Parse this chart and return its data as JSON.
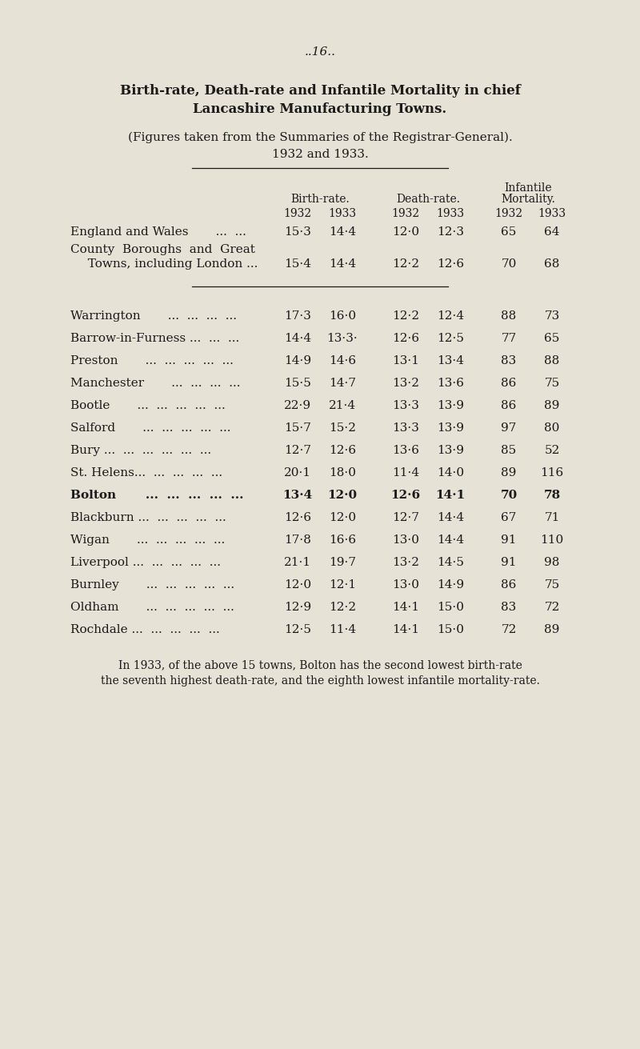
{
  "page_number": "..16..",
  "title_line1": "Birth-rate, Death-rate and Infantile Mortality in chief",
  "title_line2": "Lancashire Manufacturing Towns.",
  "subtitle": "(Figures taken from the Summaries of the Registrar-General).",
  "subtitle2": "1932 and 1933.",
  "reference_rows": [
    {
      "name1": "England and Wales       ...  ...",
      "name2": null,
      "bold": false,
      "br1932": "15·3",
      "br1933": "14·4",
      "dr1932": "12·0",
      "dr1933": "12·3",
      "im1932": "65",
      "im1933": "64"
    },
    {
      "name1": "County  Boroughs  and  Great",
      "name2": "  Towns, including London ...",
      "bold": false,
      "br1932": "15·4",
      "br1933": "14·4",
      "dr1932": "12·2",
      "dr1933": "12·6",
      "im1932": "70",
      "im1933": "68"
    }
  ],
  "town_rows": [
    {
      "name": "Warrington       ...  ...  ...  ...",
      "bold": false,
      "br1932": "17·3",
      "br1933": "16·0",
      "dr1932": "12·2",
      "dr1933": "12·4",
      "im1932": "88",
      "im1933": "73"
    },
    {
      "name": "Barrow-in-Furness ...  ...  ...",
      "bold": false,
      "br1932": "14·4",
      "br1933": "13·3·",
      "dr1932": "12·6",
      "dr1933": "12·5",
      "im1932": "77",
      "im1933": "65"
    },
    {
      "name": "Preston       ...  ...  ...  ...  ...",
      "bold": false,
      "br1932": "14·9",
      "br1933": "14·6",
      "dr1932": "13·1",
      "dr1933": "13·4",
      "im1932": "83",
      "im1933": "88"
    },
    {
      "name": "Manchester       ...  ...  ...  ...",
      "bold": false,
      "br1932": "15·5",
      "br1933": "14·7",
      "dr1932": "13·2",
      "dr1933": "13·6",
      "im1932": "86",
      "im1933": "75"
    },
    {
      "name": "Bootle       ...  ...  ...  ...  ...",
      "bold": false,
      "br1932": "22·9",
      "br1933": "21·4",
      "dr1932": "13·3",
      "dr1933": "13·9",
      "im1932": "86",
      "im1933": "89"
    },
    {
      "name": "Salford       ...  ...  ...  ...  ...",
      "bold": false,
      "br1932": "15·7",
      "br1933": "15·2",
      "dr1932": "13·3",
      "dr1933": "13·9",
      "im1932": "97",
      "im1933": "80"
    },
    {
      "name": "Bury ...  ...  ...  ...  ...  ...",
      "bold": false,
      "br1932": "12·7",
      "br1933": "12·6",
      "dr1932": "13·6",
      "dr1933": "13·9",
      "im1932": "85",
      "im1933": "52"
    },
    {
      "name": "St. Helens...  ...  ...  ...  ...",
      "bold": false,
      "br1932": "20·1",
      "br1933": "18·0",
      "dr1932": "11·4",
      "dr1933": "14·0",
      "im1932": "89",
      "im1933": "116"
    },
    {
      "name": "Bolton       ...  ...  ...  ...  ...",
      "bold": true,
      "br1932": "13·4",
      "br1933": "12·0",
      "dr1932": "12·6",
      "dr1933": "14·1",
      "im1932": "70",
      "im1933": "78"
    },
    {
      "name": "Blackburn ...  ...  ...  ...  ...",
      "bold": false,
      "br1932": "12·6",
      "br1933": "12·0",
      "dr1932": "12·7",
      "dr1933": "14·4",
      "im1932": "67",
      "im1933": "71"
    },
    {
      "name": "Wigan       ...  ...  ...  ...  ...",
      "bold": false,
      "br1932": "17·8",
      "br1933": "16·6",
      "dr1932": "13·0",
      "dr1933": "14·4",
      "im1932": "91",
      "im1933": "110"
    },
    {
      "name": "Liverpool ...  ...  ...  ...  ...",
      "bold": false,
      "br1932": "21·1",
      "br1933": "19·7",
      "dr1932": "13·2",
      "dr1933": "14·5",
      "im1932": "91",
      "im1933": "98"
    },
    {
      "name": "Burnley       ...  ...  ...  ...  ...",
      "bold": false,
      "br1932": "12·0",
      "br1933": "12·1",
      "dr1932": "13·0",
      "dr1933": "14·9",
      "im1932": "86",
      "im1933": "75"
    },
    {
      "name": "Oldham       ...  ...  ...  ...  ...",
      "bold": false,
      "br1932": "12·9",
      "br1933": "12·2",
      "dr1932": "14·1",
      "dr1933": "15·0",
      "im1932": "83",
      "im1933": "72"
    },
    {
      "name": "Rochdale ...  ...  ...  ...  ...",
      "bold": false,
      "br1932": "12·5",
      "br1933": "11·4",
      "dr1932": "14·1",
      "dr1933": "15·0",
      "im1932": "72",
      "im1933": "89"
    }
  ],
  "footnote_line1": "In 1933, of the above 15 towns, Bolton has the second lowest birth-rate",
  "footnote_line2": "the seventh highest death-rate, and the eighth lowest infantile mortality-rate.",
  "bg_color": "#e6e2d5",
  "text_color": "#1a1a1a"
}
